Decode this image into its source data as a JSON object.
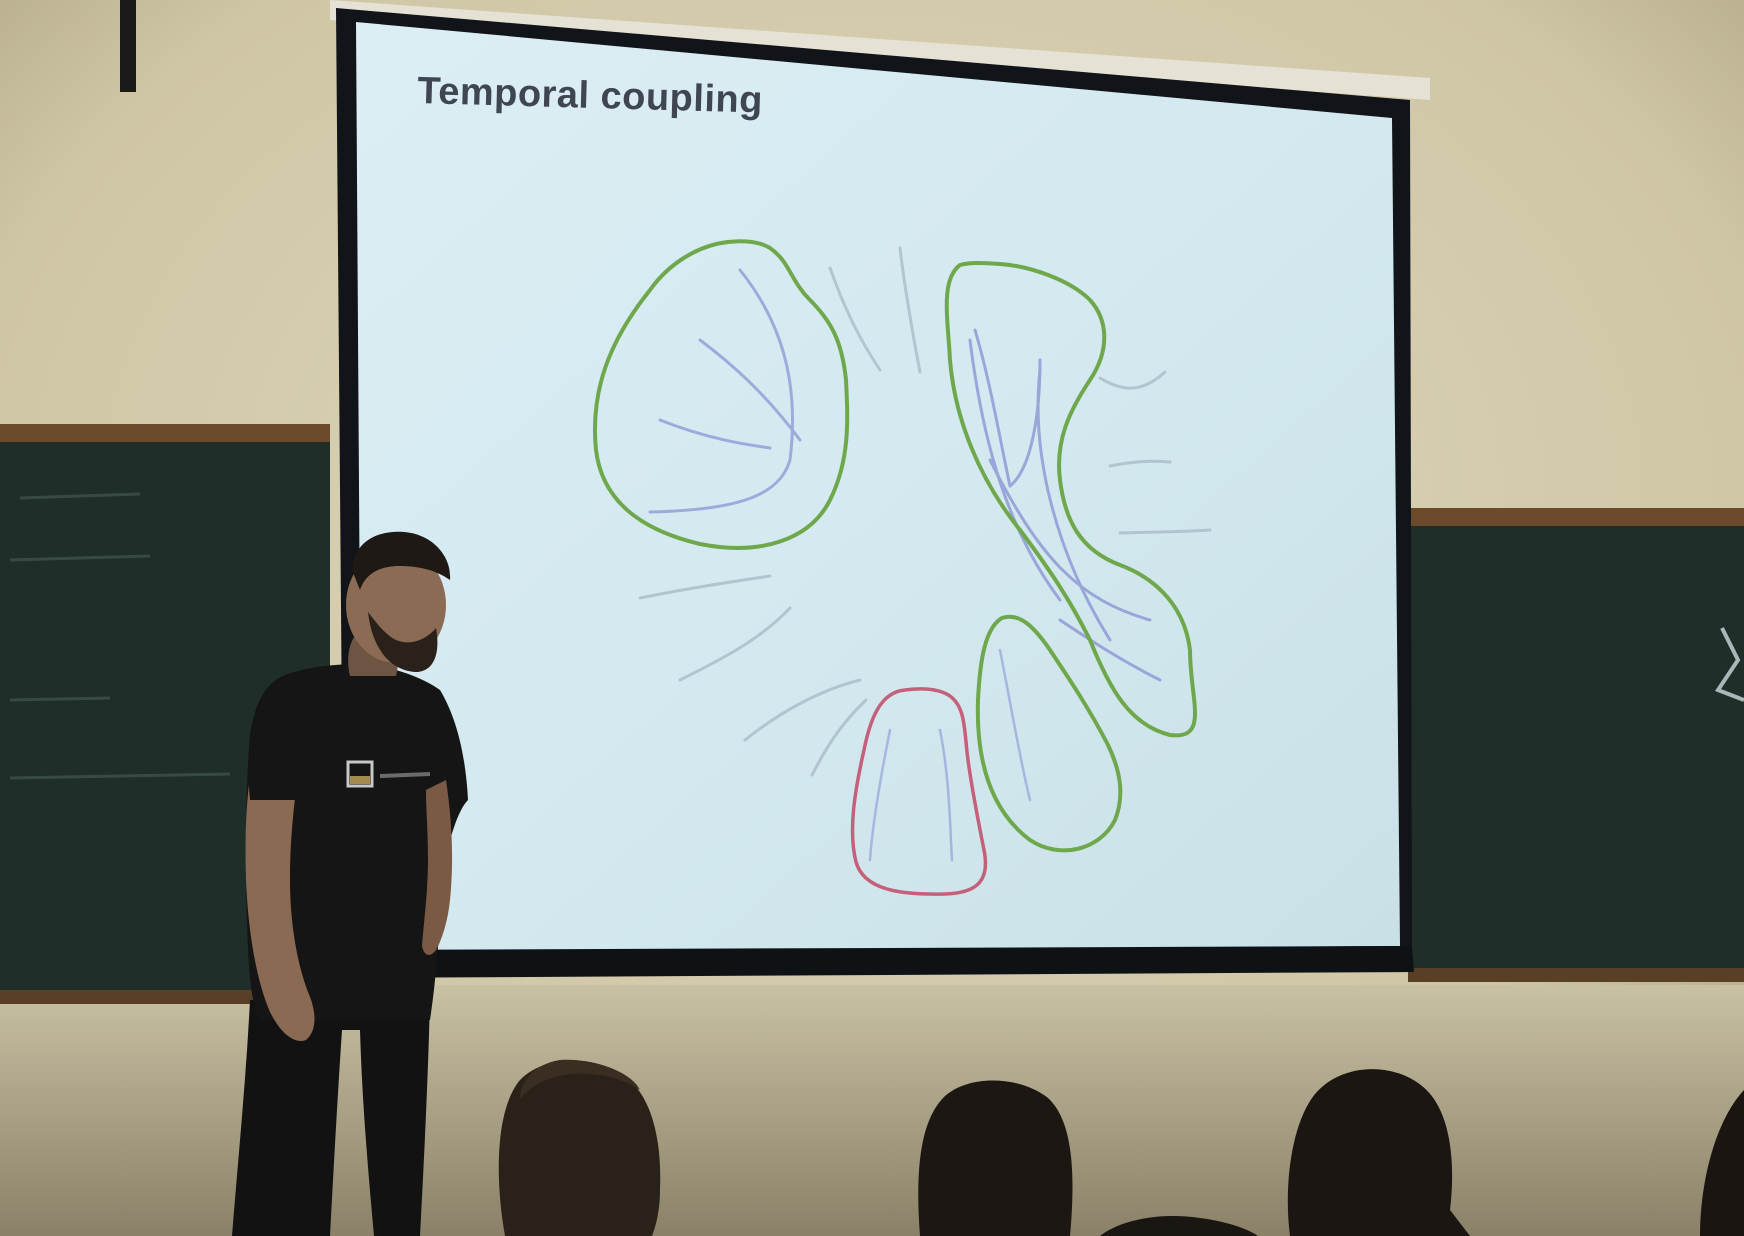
{
  "slide": {
    "title": "Temporal coupling"
  },
  "colors": {
    "wall": "#d9d1b4",
    "chalkboard": "#1f2e28",
    "chalkboard_trim": "#6b4a2c",
    "screen_frame": "#111418",
    "screen_surface": "#cfe6ee",
    "green_outline": "#6fa84c",
    "red_outline": "#c4607a",
    "blue_lines": "#8a96d6",
    "gray_lines": "#a9bcc8",
    "presenter": "#141414",
    "audience": "#1d1915"
  },
  "icons": {
    "shirt_logo": "square-logo-icon"
  }
}
